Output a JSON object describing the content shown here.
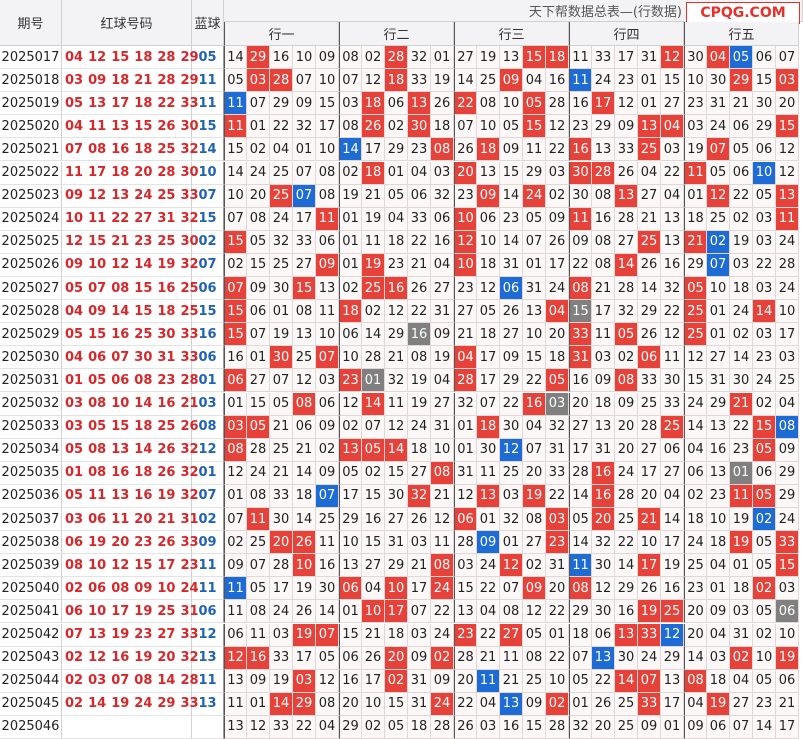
{
  "header": {
    "period": "期号",
    "red": "红球号码",
    "blue": "蓝球",
    "banner": "天下帮数据总表—(行数据)",
    "logo": "CPQG.COM",
    "groups": [
      "行一",
      "行二",
      "行三",
      "行四",
      "行五"
    ]
  },
  "rows": [
    {
      "period": "2025017",
      "red": [
        "04",
        "12",
        "15",
        "18",
        "28",
        "29"
      ],
      "blue": "05",
      "cells": [
        "14",
        "29",
        "16",
        "10",
        "09",
        "08",
        "02",
        "28",
        "32",
        "01",
        "27",
        "19",
        "13",
        "15",
        "18",
        "11",
        "33",
        "17",
        "31",
        "12",
        "30",
        "04",
        "05",
        "06",
        "07"
      ]
    },
    {
      "period": "2025018",
      "red": [
        "03",
        "09",
        "18",
        "21",
        "28",
        "29"
      ],
      "blue": "11",
      "cells": [
        "05",
        "03",
        "28",
        "07",
        "10",
        "07",
        "12",
        "18",
        "33",
        "19",
        "14",
        "25",
        "09",
        "04",
        "16",
        "11",
        "24",
        "23",
        "01",
        "15",
        "10",
        "30",
        "29",
        "15",
        "03"
      ]
    },
    {
      "period": "2025019",
      "red": [
        "05",
        "13",
        "17",
        "18",
        "22",
        "33"
      ],
      "blue": "11",
      "cells": [
        "11",
        "07",
        "29",
        "09",
        "15",
        "03",
        "18",
        "06",
        "13",
        "26",
        "22",
        "08",
        "10",
        "05",
        "28",
        "16",
        "17",
        "12",
        "01",
        "27",
        "23",
        "31",
        "21",
        "30",
        "20"
      ]
    },
    {
      "period": "2025020",
      "red": [
        "04",
        "11",
        "13",
        "15",
        "26",
        "30"
      ],
      "blue": "15",
      "cells": [
        "11",
        "01",
        "22",
        "32",
        "17",
        "08",
        "26",
        "02",
        "30",
        "18",
        "07",
        "10",
        "05",
        "15",
        "12",
        "23",
        "29",
        "09",
        "13",
        "04",
        "03",
        "24",
        "06",
        "29",
        "15"
      ]
    },
    {
      "period": "2025021",
      "red": [
        "07",
        "08",
        "16",
        "18",
        "25",
        "32"
      ],
      "blue": "14",
      "cells": [
        "15",
        "02",
        "04",
        "01",
        "10",
        "14",
        "17",
        "29",
        "23",
        "08",
        "26",
        "18",
        "09",
        "11",
        "22",
        "16",
        "13",
        "33",
        "25",
        "03",
        "19",
        "07",
        "05",
        "06",
        "12"
      ]
    },
    {
      "period": "2025022",
      "red": [
        "11",
        "17",
        "18",
        "20",
        "28",
        "30"
      ],
      "blue": "10",
      "cells": [
        "14",
        "24",
        "25",
        "07",
        "08",
        "02",
        "18",
        "01",
        "04",
        "03",
        "20",
        "13",
        "15",
        "29",
        "03",
        "30",
        "28",
        "26",
        "04",
        "22",
        "11",
        "05",
        "06",
        "10",
        "12"
      ]
    },
    {
      "period": "2025023",
      "red": [
        "09",
        "12",
        "13",
        "24",
        "25",
        "33"
      ],
      "blue": "07",
      "cells": [
        "10",
        "20",
        "25",
        "07",
        "08",
        "19",
        "21",
        "05",
        "06",
        "32",
        "23",
        "09",
        "14",
        "24",
        "02",
        "30",
        "08",
        "13",
        "27",
        "04",
        "01",
        "12",
        "22",
        "05",
        "13"
      ]
    },
    {
      "period": "2025024",
      "red": [
        "10",
        "11",
        "22",
        "27",
        "31",
        "32"
      ],
      "blue": "15",
      "cells": [
        "07",
        "08",
        "24",
        "17",
        "11",
        "01",
        "19",
        "04",
        "33",
        "06",
        "10",
        "06",
        "23",
        "05",
        "09",
        "11",
        "16",
        "28",
        "21",
        "13",
        "18",
        "25",
        "02",
        "03",
        "11"
      ]
    },
    {
      "period": "2025025",
      "red": [
        "12",
        "15",
        "21",
        "23",
        "25",
        "30"
      ],
      "blue": "02",
      "cells": [
        "15",
        "05",
        "32",
        "33",
        "06",
        "01",
        "11",
        "18",
        "22",
        "16",
        "12",
        "10",
        "14",
        "07",
        "26",
        "09",
        "08",
        "27",
        "25",
        "13",
        "21",
        "02",
        "19",
        "03",
        "24"
      ]
    },
    {
      "period": "2025026",
      "red": [
        "09",
        "10",
        "12",
        "14",
        "19",
        "32"
      ],
      "blue": "07",
      "cells": [
        "02",
        "15",
        "25",
        "27",
        "09",
        "01",
        "19",
        "23",
        "21",
        "04",
        "10",
        "18",
        "31",
        "01",
        "17",
        "22",
        "08",
        "14",
        "26",
        "16",
        "29",
        "07",
        "03",
        "22",
        "28"
      ]
    },
    {
      "period": "2025027",
      "red": [
        "05",
        "07",
        "08",
        "15",
        "16",
        "25"
      ],
      "blue": "06",
      "cells": [
        "07",
        "09",
        "30",
        "15",
        "13",
        "02",
        "25",
        "16",
        "26",
        "27",
        "23",
        "12",
        "06",
        "31",
        "24",
        "08",
        "21",
        "28",
        "14",
        "32",
        "05",
        "10",
        "18",
        "03",
        "24"
      ]
    },
    {
      "period": "2025028",
      "red": [
        "04",
        "09",
        "14",
        "15",
        "18",
        "25"
      ],
      "blue": "15",
      "gray": [
        15
      ],
      "cells": [
        "15",
        "06",
        "01",
        "08",
        "11",
        "18",
        "02",
        "12",
        "22",
        "31",
        "27",
        "05",
        "26",
        "13",
        "04",
        "15",
        "17",
        "32",
        "29",
        "22",
        "25",
        "01",
        "24",
        "14",
        "10"
      ]
    },
    {
      "period": "2025029",
      "red": [
        "05",
        "15",
        "16",
        "25",
        "30",
        "33"
      ],
      "blue": "16",
      "gray": [
        8
      ],
      "cells": [
        "15",
        "07",
        "19",
        "13",
        "10",
        "06",
        "14",
        "29",
        "16",
        "09",
        "21",
        "18",
        "27",
        "10",
        "20",
        "33",
        "11",
        "05",
        "26",
        "12",
        "25",
        "01",
        "02",
        "03",
        "17"
      ]
    },
    {
      "period": "2025030",
      "red": [
        "04",
        "06",
        "07",
        "30",
        "31",
        "33"
      ],
      "blue": "06",
      "cells": [
        "16",
        "01",
        "30",
        "25",
        "07",
        "10",
        "28",
        "21",
        "08",
        "19",
        "04",
        "17",
        "09",
        "15",
        "18",
        "31",
        "03",
        "02",
        "06",
        "11",
        "12",
        "27",
        "14",
        "23",
        "03"
      ]
    },
    {
      "period": "2025031",
      "red": [
        "01",
        "05",
        "06",
        "08",
        "23",
        "28"
      ],
      "blue": "01",
      "gray": [
        6
      ],
      "cells": [
        "06",
        "27",
        "07",
        "12",
        "03",
        "23",
        "01",
        "32",
        "19",
        "04",
        "28",
        "17",
        "29",
        "22",
        "05",
        "16",
        "09",
        "08",
        "33",
        "30",
        "15",
        "31",
        "30",
        "24",
        "25"
      ]
    },
    {
      "period": "2025032",
      "red": [
        "03",
        "08",
        "10",
        "14",
        "16",
        "21"
      ],
      "blue": "03",
      "gray": [
        14
      ],
      "cells": [
        "01",
        "15",
        "05",
        "08",
        "06",
        "12",
        "14",
        "11",
        "19",
        "27",
        "32",
        "07",
        "22",
        "16",
        "03",
        "20",
        "18",
        "09",
        "25",
        "33",
        "24",
        "29",
        "21",
        "02",
        "04"
      ]
    },
    {
      "period": "2025033",
      "red": [
        "03",
        "05",
        "15",
        "18",
        "25",
        "26"
      ],
      "blue": "08",
      "cells": [
        "03",
        "05",
        "21",
        "06",
        "09",
        "02",
        "07",
        "12",
        "24",
        "31",
        "01",
        "18",
        "30",
        "04",
        "32",
        "27",
        "13",
        "20",
        "28",
        "25",
        "14",
        "13",
        "22",
        "15",
        "08"
      ]
    },
    {
      "period": "2025034",
      "red": [
        "05",
        "08",
        "13",
        "14",
        "26",
        "32"
      ],
      "blue": "12",
      "cells": [
        "08",
        "28",
        "25",
        "21",
        "02",
        "13",
        "05",
        "14",
        "18",
        "10",
        "01",
        "30",
        "12",
        "07",
        "31",
        "17",
        "31",
        "20",
        "27",
        "06",
        "04",
        "16",
        "23",
        "05",
        "09"
      ]
    },
    {
      "period": "2025035",
      "red": [
        "01",
        "08",
        "16",
        "18",
        "26",
        "32"
      ],
      "blue": "01",
      "gray": [
        22
      ],
      "cells": [
        "12",
        "24",
        "21",
        "14",
        "09",
        "05",
        "02",
        "15",
        "27",
        "08",
        "31",
        "11",
        "25",
        "20",
        "33",
        "28",
        "16",
        "24",
        "17",
        "27",
        "06",
        "13",
        "01",
        "06",
        "29"
      ]
    },
    {
      "period": "2025036",
      "red": [
        "05",
        "11",
        "13",
        "16",
        "19",
        "32"
      ],
      "blue": "07",
      "cells": [
        "01",
        "08",
        "33",
        "18",
        "07",
        "17",
        "15",
        "30",
        "32",
        "21",
        "12",
        "13",
        "03",
        "19",
        "22",
        "14",
        "16",
        "28",
        "20",
        "04",
        "02",
        "23",
        "11",
        "05",
        "29"
      ]
    },
    {
      "period": "2025037",
      "red": [
        "03",
        "06",
        "11",
        "20",
        "21",
        "31"
      ],
      "blue": "02",
      "cells": [
        "07",
        "11",
        "30",
        "14",
        "25",
        "29",
        "16",
        "27",
        "26",
        "12",
        "06",
        "01",
        "32",
        "08",
        "03",
        "05",
        "20",
        "25",
        "21",
        "14",
        "18",
        "10",
        "19",
        "02",
        "24"
      ]
    },
    {
      "period": "2025038",
      "red": [
        "06",
        "19",
        "20",
        "23",
        "26",
        "33"
      ],
      "blue": "09",
      "cells": [
        "02",
        "25",
        "20",
        "26",
        "11",
        "10",
        "15",
        "31",
        "03",
        "11",
        "28",
        "09",
        "01",
        "27",
        "23",
        "14",
        "32",
        "22",
        "10",
        "17",
        "24",
        "18",
        "19",
        "05",
        "33"
      ]
    },
    {
      "period": "2025039",
      "red": [
        "08",
        "10",
        "12",
        "15",
        "17",
        "23"
      ],
      "blue": "11",
      "cells": [
        "09",
        "07",
        "28",
        "10",
        "16",
        "13",
        "27",
        "29",
        "21",
        "08",
        "03",
        "24",
        "12",
        "02",
        "31",
        "11",
        "30",
        "14",
        "17",
        "19",
        "25",
        "04",
        "01",
        "05",
        "15"
      ]
    },
    {
      "period": "2025040",
      "red": [
        "02",
        "06",
        "08",
        "09",
        "10",
        "24"
      ],
      "blue": "11",
      "cells": [
        "11",
        "05",
        "17",
        "19",
        "30",
        "06",
        "04",
        "10",
        "17",
        "24",
        "15",
        "22",
        "07",
        "09",
        "20",
        "08",
        "12",
        "29",
        "26",
        "16",
        "23",
        "01",
        "18",
        "02",
        "03"
      ]
    },
    {
      "period": "2025041",
      "red": [
        "06",
        "10",
        "17",
        "19",
        "25",
        "31"
      ],
      "blue": "06",
      "gray": [
        24
      ],
      "cells": [
        "11",
        "08",
        "24",
        "26",
        "14",
        "01",
        "10",
        "17",
        "07",
        "22",
        "13",
        "04",
        "08",
        "12",
        "22",
        "29",
        "30",
        "16",
        "19",
        "25",
        "20",
        "09",
        "03",
        "05",
        "06"
      ]
    },
    {
      "period": "2025042",
      "red": [
        "07",
        "13",
        "19",
        "23",
        "27",
        "33"
      ],
      "blue": "12",
      "cells": [
        "06",
        "11",
        "03",
        "19",
        "07",
        "15",
        "21",
        "18",
        "03",
        "24",
        "23",
        "22",
        "27",
        "05",
        "01",
        "18",
        "06",
        "13",
        "33",
        "12",
        "20",
        "04",
        "31",
        "02",
        "10"
      ]
    },
    {
      "period": "2025043",
      "red": [
        "02",
        "12",
        "16",
        "19",
        "20",
        "32"
      ],
      "blue": "13",
      "cells": [
        "12",
        "16",
        "33",
        "17",
        "05",
        "06",
        "26",
        "20",
        "09",
        "02",
        "28",
        "21",
        "11",
        "08",
        "22",
        "07",
        "13",
        "30",
        "24",
        "29",
        "14",
        "03",
        "02",
        "10",
        "19"
      ]
    },
    {
      "period": "2025044",
      "red": [
        "02",
        "03",
        "07",
        "08",
        "14",
        "28"
      ],
      "blue": "11",
      "cells": [
        "13",
        "09",
        "19",
        "03",
        "12",
        "16",
        "17",
        "02",
        "31",
        "09",
        "20",
        "11",
        "21",
        "25",
        "10",
        "05",
        "22",
        "14",
        "07",
        "13",
        "08",
        "18",
        "04",
        "05",
        "06"
      ]
    },
    {
      "period": "2025045",
      "red": [
        "02",
        "14",
        "19",
        "24",
        "29",
        "33"
      ],
      "blue": "13",
      "cells": [
        "11",
        "01",
        "14",
        "29",
        "08",
        "20",
        "10",
        "15",
        "31",
        "24",
        "22",
        "04",
        "13",
        "09",
        "02",
        "01",
        "26",
        "25",
        "33",
        "17",
        "04",
        "19",
        "27",
        "23",
        "21"
      ]
    },
    {
      "period": "2025046",
      "red": [],
      "cells": [
        "13",
        "12",
        "33",
        "22",
        "04",
        "29",
        "02",
        "05",
        "18",
        "28",
        "26",
        "03",
        "16",
        "15",
        "28",
        "32",
        "20",
        "25",
        "09",
        "01",
        "09",
        "06",
        "07",
        "14",
        "17"
      ]
    }
  ]
}
